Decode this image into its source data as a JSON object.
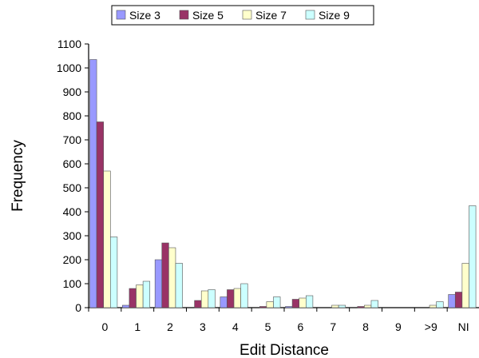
{
  "chart_data": {
    "type": "bar",
    "xlabel": "Edit Distance",
    "ylabel": "Frequency",
    "ylim": [
      0,
      1100
    ],
    "yticks": [
      0,
      100,
      200,
      300,
      400,
      500,
      600,
      700,
      800,
      900,
      1000,
      1100
    ],
    "grid": false,
    "legend_position": "top",
    "categories": [
      "0",
      "1",
      "2",
      "3",
      "4",
      "5",
      "6",
      "7",
      "8",
      "9",
      ">9",
      "NI"
    ],
    "series": [
      {
        "name": "Size 3",
        "color": "#9999ff",
        "values": [
          1035,
          10,
          200,
          0,
          45,
          0,
          5,
          0,
          0,
          0,
          0,
          55
        ]
      },
      {
        "name": "Size 5",
        "color": "#993366",
        "values": [
          775,
          80,
          270,
          30,
          75,
          5,
          35,
          0,
          5,
          0,
          0,
          65
        ]
      },
      {
        "name": "Size 7",
        "color": "#ffffcc",
        "values": [
          570,
          95,
          250,
          70,
          80,
          25,
          40,
          10,
          10,
          0,
          10,
          185
        ]
      },
      {
        "name": "Size 9",
        "color": "#ccffff",
        "values": [
          295,
          110,
          185,
          75,
          100,
          45,
          50,
          10,
          30,
          0,
          25,
          425
        ]
      }
    ]
  }
}
